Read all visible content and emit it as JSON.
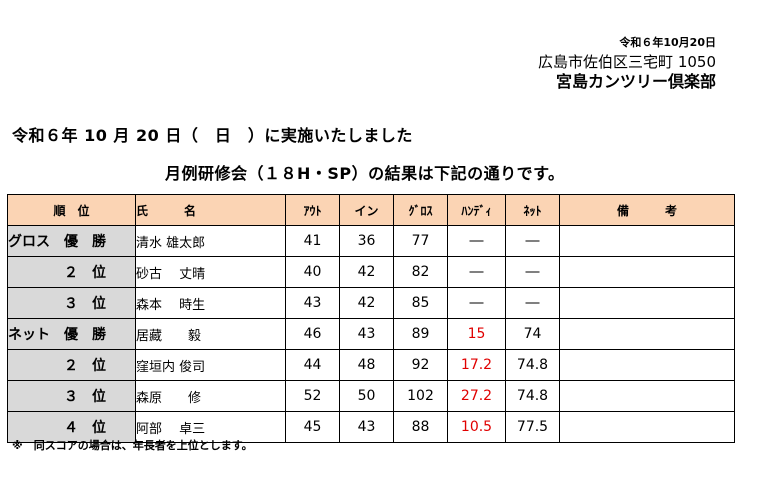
{
  "header": {
    "date": "令和６年10月20日",
    "address": "広島市佐伯区三宅町 1050",
    "club": "宮島カンツリー倶楽部"
  },
  "held_line": "令和６年 10 月 20 日（　日　）に実施いたしました",
  "subtitle": "月例研修会（１８H・SP）の結果は下記の通りです。",
  "table": {
    "headers": {
      "rank": "順　位",
      "name": "氏　　　名",
      "out": "ｱｳﾄ",
      "in": "イン",
      "gross": "ｸﾞﾛｽ",
      "hdcp": "ﾊﾝﾃﾞｨ",
      "net": "ﾈｯﾄ",
      "note": "備　　　考"
    },
    "rows": [
      {
        "rank": "グロス　優　勝",
        "name": "清水 雄太郎",
        "out": "41",
        "in": "36",
        "gross": "77",
        "hdcp": "―",
        "net": "―",
        "note": ""
      },
      {
        "rank": "２　位",
        "name": "砂古　 丈晴",
        "out": "40",
        "in": "42",
        "gross": "82",
        "hdcp": "―",
        "net": "―",
        "note": ""
      },
      {
        "rank": "３　位",
        "name": "森本　 時生",
        "out": "43",
        "in": "42",
        "gross": "85",
        "hdcp": "―",
        "net": "―",
        "note": ""
      },
      {
        "rank": "ネット　優　勝",
        "name": "居藏　　毅",
        "out": "46",
        "in": "43",
        "gross": "89",
        "hdcp": "15",
        "net": "74",
        "note": ""
      },
      {
        "rank": "２　位",
        "name": "窪垣内 俊司",
        "out": "44",
        "in": "48",
        "gross": "92",
        "hdcp": "17.2",
        "net": "74.8",
        "note": ""
      },
      {
        "rank": "３　位",
        "name": "森原　　修",
        "out": "52",
        "in": "50",
        "gross": "102",
        "hdcp": "27.2",
        "net": "74.8",
        "note": ""
      },
      {
        "rank": "４　位",
        "name": "阿部　 卓三",
        "out": "45",
        "in": "43",
        "gross": "88",
        "hdcp": "10.5",
        "net": "77.5",
        "note": ""
      }
    ]
  },
  "footnote": "※　同スコアの場合は、年長者を上位とします。",
  "colors": {
    "header_bg": "#fbd4b4",
    "rank_bg": "#d9d9d9",
    "hdcp_red": "#e00000"
  }
}
